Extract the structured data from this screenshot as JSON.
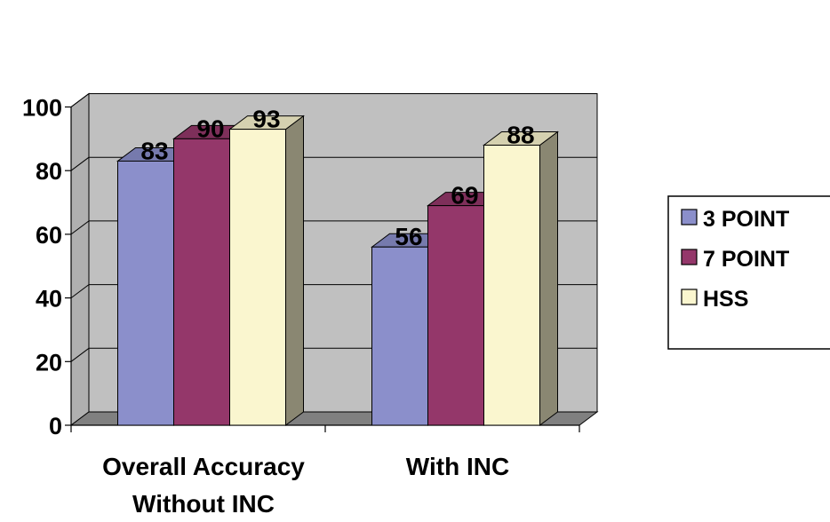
{
  "chart_data": {
    "type": "bar",
    "categories": [
      [
        "Overall Accuracy",
        "Without INC"
      ],
      [
        "With INC"
      ]
    ],
    "series": [
      {
        "name": "3 POINT",
        "values": [
          83,
          56
        ],
        "color": "#8B8FCB"
      },
      {
        "name": "7 POINT",
        "values": [
          90,
          69
        ],
        "color": "#94376A"
      },
      {
        "name": "HSS",
        "values": [
          93,
          88
        ],
        "color": "#FAF6CF"
      }
    ],
    "data_labels": [
      [
        "83",
        "56"
      ],
      [
        "90",
        "69"
      ],
      [
        "93",
        "88"
      ]
    ],
    "yticks": [
      "0",
      "20",
      "40",
      "60",
      "80",
      "100"
    ],
    "ylim": [
      0,
      100
    ],
    "grid": true,
    "legend_position": "right",
    "title": "",
    "xlabel": "",
    "ylabel": "",
    "colors": {
      "wall": "#C0C0C0",
      "floor": "#808080"
    }
  }
}
